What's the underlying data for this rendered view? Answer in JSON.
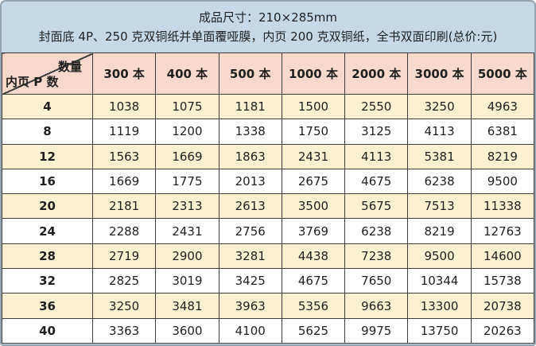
{
  "header": {
    "line1": "成品尺寸：210×285mm",
    "line2": "封面底 4P、250 克双铜纸并单面覆哑膜，内页 200 克双铜纸，全书双面印刷(总价:元)"
  },
  "table": {
    "corner": {
      "top_label": "数量",
      "bottom_label": "内页 P 数"
    },
    "columns": [
      "300 本",
      "400 本",
      "500 本",
      "1000 本",
      "2000 本",
      "3000 本",
      "5000 本"
    ],
    "rows": [
      {
        "pages": "4",
        "values": [
          "1038",
          "1075",
          "1181",
          "1500",
          "2550",
          "3250",
          "4963"
        ]
      },
      {
        "pages": "8",
        "values": [
          "1119",
          "1200",
          "1338",
          "1750",
          "3125",
          "4113",
          "6381"
        ]
      },
      {
        "pages": "12",
        "values": [
          "1563",
          "1669",
          "1863",
          "2431",
          "4113",
          "5381",
          "8219"
        ]
      },
      {
        "pages": "16",
        "values": [
          "1669",
          "1775",
          "2013",
          "2675",
          "4675",
          "6238",
          "9500"
        ]
      },
      {
        "pages": "20",
        "values": [
          "2181",
          "2313",
          "2613",
          "3500",
          "5675",
          "7513",
          "11338"
        ]
      },
      {
        "pages": "24",
        "values": [
          "2288",
          "2431",
          "2756",
          "3769",
          "6238",
          "8219",
          "12763"
        ]
      },
      {
        "pages": "28",
        "values": [
          "2719",
          "2900",
          "3281",
          "4438",
          "7238",
          "9500",
          "14600"
        ]
      },
      {
        "pages": "32",
        "values": [
          "2825",
          "3019",
          "3425",
          "4675",
          "7650",
          "10344",
          "15738"
        ]
      },
      {
        "pages": "36",
        "values": [
          "3250",
          "3481",
          "3963",
          "5356",
          "9663",
          "13300",
          "20738"
        ]
      },
      {
        "pages": "40",
        "values": [
          "3363",
          "3600",
          "4100",
          "5625",
          "9975",
          "13750",
          "20263"
        ]
      }
    ]
  },
  "colors": {
    "panel_blue": "#c6d9e7",
    "header_pink": "#f8d9cb",
    "row_cream": "#fbf0cf",
    "row_white": "#ffffff",
    "grid_border": "#3d3d3d",
    "outer_border": "#95a4af"
  }
}
